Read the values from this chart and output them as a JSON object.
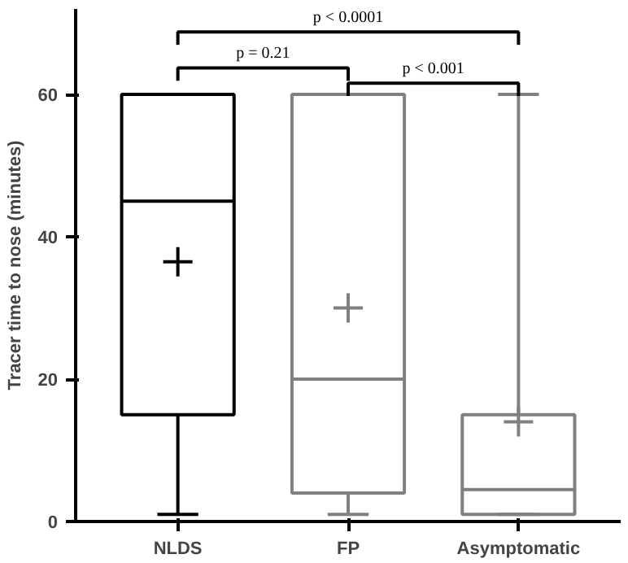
{
  "chart_data": {
    "type": "box",
    "ylabel": "Tracer time to nose (minutes)",
    "categories": [
      "NLDS",
      "FP",
      "Asymptomatic"
    ],
    "colors": [
      "#000000",
      "#808080",
      "#808080"
    ],
    "boxes": [
      {
        "low": 1,
        "q1": 15,
        "median": 45,
        "q3": 60,
        "high": 60,
        "mean": 36.5
      },
      {
        "low": 1,
        "q1": 4,
        "median": 20,
        "q3": 60,
        "high": 60,
        "mean": 30
      },
      {
        "low": 1,
        "q1": 1,
        "median": 4.5,
        "q3": 15,
        "high": 60,
        "mean": 14
      }
    ],
    "ylim": [
      0,
      72
    ],
    "yticks": [
      0,
      20,
      40,
      60
    ],
    "grid": false,
    "annotations": [
      "p < 0.0001",
      "p = 0.21",
      "p < 0.001"
    ]
  }
}
